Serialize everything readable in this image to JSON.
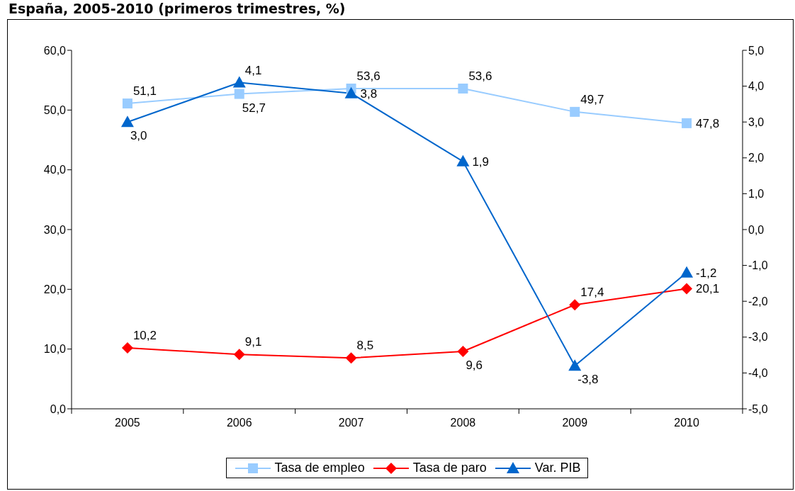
{
  "chart_data": {
    "type": "line",
    "title": "España, 2005-2010 (primeros trimestres, %)",
    "categories": [
      "2005",
      "2006",
      "2007",
      "2008",
      "2009",
      "2010"
    ],
    "series": [
      {
        "name": "Tasa de empleo",
        "color": "#99ccff",
        "marker": "square",
        "values": [
          51.1,
          52.7,
          53.6,
          53.6,
          49.7,
          47.8
        ],
        "value_labels": [
          "51,1",
          "52,7",
          "53,6",
          "53,6",
          "49,7",
          "47,8"
        ]
      },
      {
        "name": "Tasa de paro",
        "color": "#ff0000",
        "marker": "diamond",
        "values": [
          10.2,
          9.1,
          8.5,
          9.6,
          17.4,
          20.1
        ],
        "value_labels": [
          "10,2",
          "9,1",
          "8,5",
          "9,6",
          "17,4",
          "20,1"
        ]
      },
      {
        "name": "Var. PIB",
        "color": "#0066cc",
        "marker": "triangle",
        "axis": "y2",
        "values": [
          3.0,
          4.1,
          3.8,
          1.9,
          -3.8,
          -1.2
        ],
        "value_labels": [
          "3,0",
          "4,1",
          "3,8",
          "1,9",
          "-3,8",
          "-1,2"
        ]
      }
    ],
    "ylim": [
      0,
      60
    ],
    "yticks": [
      {
        "value": 0,
        "label": "0,0"
      },
      {
        "value": 10,
        "label": "10,0"
      },
      {
        "value": 20,
        "label": "20,0"
      },
      {
        "value": 30,
        "label": "30,0"
      },
      {
        "value": 40,
        "label": "40,0"
      },
      {
        "value": 50,
        "label": "50,0"
      },
      {
        "value": 60,
        "label": "60,0"
      }
    ],
    "y2lim": [
      -5,
      5
    ],
    "y2ticks": [
      {
        "value": -5,
        "label": "-5,0"
      },
      {
        "value": -4,
        "label": "-4,0"
      },
      {
        "value": -3,
        "label": "-3,0"
      },
      {
        "value": -2,
        "label": "-2,0"
      },
      {
        "value": -1,
        "label": "-1,0"
      },
      {
        "value": 0,
        "label": "0,0"
      },
      {
        "value": 1,
        "label": "1,0"
      },
      {
        "value": 2,
        "label": "2,0"
      },
      {
        "value": 3,
        "label": "3,0"
      },
      {
        "value": 4,
        "label": "4,0"
      },
      {
        "value": 5,
        "label": "5,0"
      }
    ],
    "legend": "bottom"
  }
}
